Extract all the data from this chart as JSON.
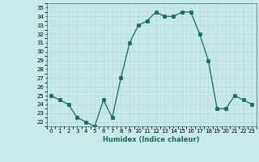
{
  "x": [
    0,
    1,
    2,
    3,
    4,
    5,
    6,
    7,
    8,
    9,
    10,
    11,
    12,
    13,
    14,
    15,
    16,
    17,
    18,
    19,
    20,
    21,
    22,
    23
  ],
  "y": [
    25.0,
    24.5,
    24.0,
    22.5,
    22.0,
    21.5,
    24.5,
    22.5,
    27.0,
    31.0,
    33.0,
    33.5,
    34.5,
    34.0,
    34.0,
    34.5,
    34.5,
    32.0,
    29.0,
    23.5,
    23.5,
    25.0,
    24.5,
    24.0
  ],
  "ylim": [
    21.5,
    35.5
  ],
  "yticks": [
    22,
    23,
    24,
    25,
    26,
    27,
    28,
    29,
    30,
    31,
    32,
    33,
    34,
    35
  ],
  "xticks": [
    0,
    1,
    2,
    3,
    4,
    5,
    6,
    7,
    8,
    9,
    10,
    11,
    12,
    13,
    14,
    15,
    16,
    17,
    18,
    19,
    20,
    21,
    22,
    23
  ],
  "xlabel": "Humidex (Indice chaleur)",
  "line_color": "#1a6b5a",
  "bg_color": "#c8eae8",
  "grid_color": "#b0d8d4",
  "spine_color": "#336666"
}
